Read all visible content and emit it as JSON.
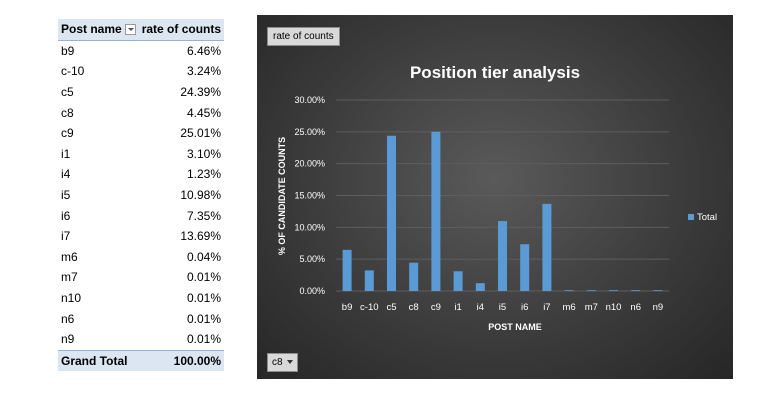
{
  "table": {
    "header_name": "Post name",
    "header_rate": "rate of counts",
    "rows": [
      {
        "name": "b9",
        "value": "6.46%"
      },
      {
        "name": "c-10",
        "value": "3.24%"
      },
      {
        "name": "c5",
        "value": "24.39%"
      },
      {
        "name": "c8",
        "value": "4.45%"
      },
      {
        "name": "c9",
        "value": "25.01%"
      },
      {
        "name": "i1",
        "value": "3.10%"
      },
      {
        "name": "i4",
        "value": "1.23%"
      },
      {
        "name": "i5",
        "value": "10.98%"
      },
      {
        "name": "i6",
        "value": "7.35%"
      },
      {
        "name": "i7",
        "value": "13.69%"
      },
      {
        "name": "m6",
        "value": "0.04%"
      },
      {
        "name": "m7",
        "value": "0.01%"
      },
      {
        "name": "n10",
        "value": "0.01%"
      },
      {
        "name": "n6",
        "value": "0.01%"
      },
      {
        "name": "n9",
        "value": "0.01%"
      }
    ],
    "total_label": "Grand Total",
    "total_value": "100.00%"
  },
  "chart_controls": {
    "values_field_button": "rate of counts",
    "axis_field_button": "c8"
  },
  "chart_data": {
    "type": "bar",
    "title": "Position tier analysis",
    "xlabel": "POST NAME",
    "ylabel": "% OF CANDIDATE COUNTS",
    "categories": [
      "b9",
      "c-10",
      "c5",
      "c8",
      "c9",
      "i1",
      "i4",
      "i5",
      "i6",
      "i7",
      "m6",
      "m7",
      "n10",
      "n6",
      "n9"
    ],
    "series": [
      {
        "name": "Total",
        "values": [
          6.46,
          3.24,
          24.39,
          4.45,
          25.01,
          3.1,
          1.23,
          10.98,
          7.35,
          13.69,
          0.04,
          0.01,
          0.01,
          0.01,
          0.01
        ]
      }
    ],
    "ylim": [
      0,
      30
    ],
    "yticks": [
      0,
      5,
      10,
      15,
      20,
      25,
      30
    ],
    "ytick_labels": [
      "0.00%",
      "5.00%",
      "10.00%",
      "15.00%",
      "20.00%",
      "25.00%",
      "30.00%"
    ],
    "grid": true,
    "legend_position": "right",
    "colors": {
      "bar": "#5b9bd5",
      "grid": "#5e5e5e",
      "text": "#ffffff"
    }
  }
}
